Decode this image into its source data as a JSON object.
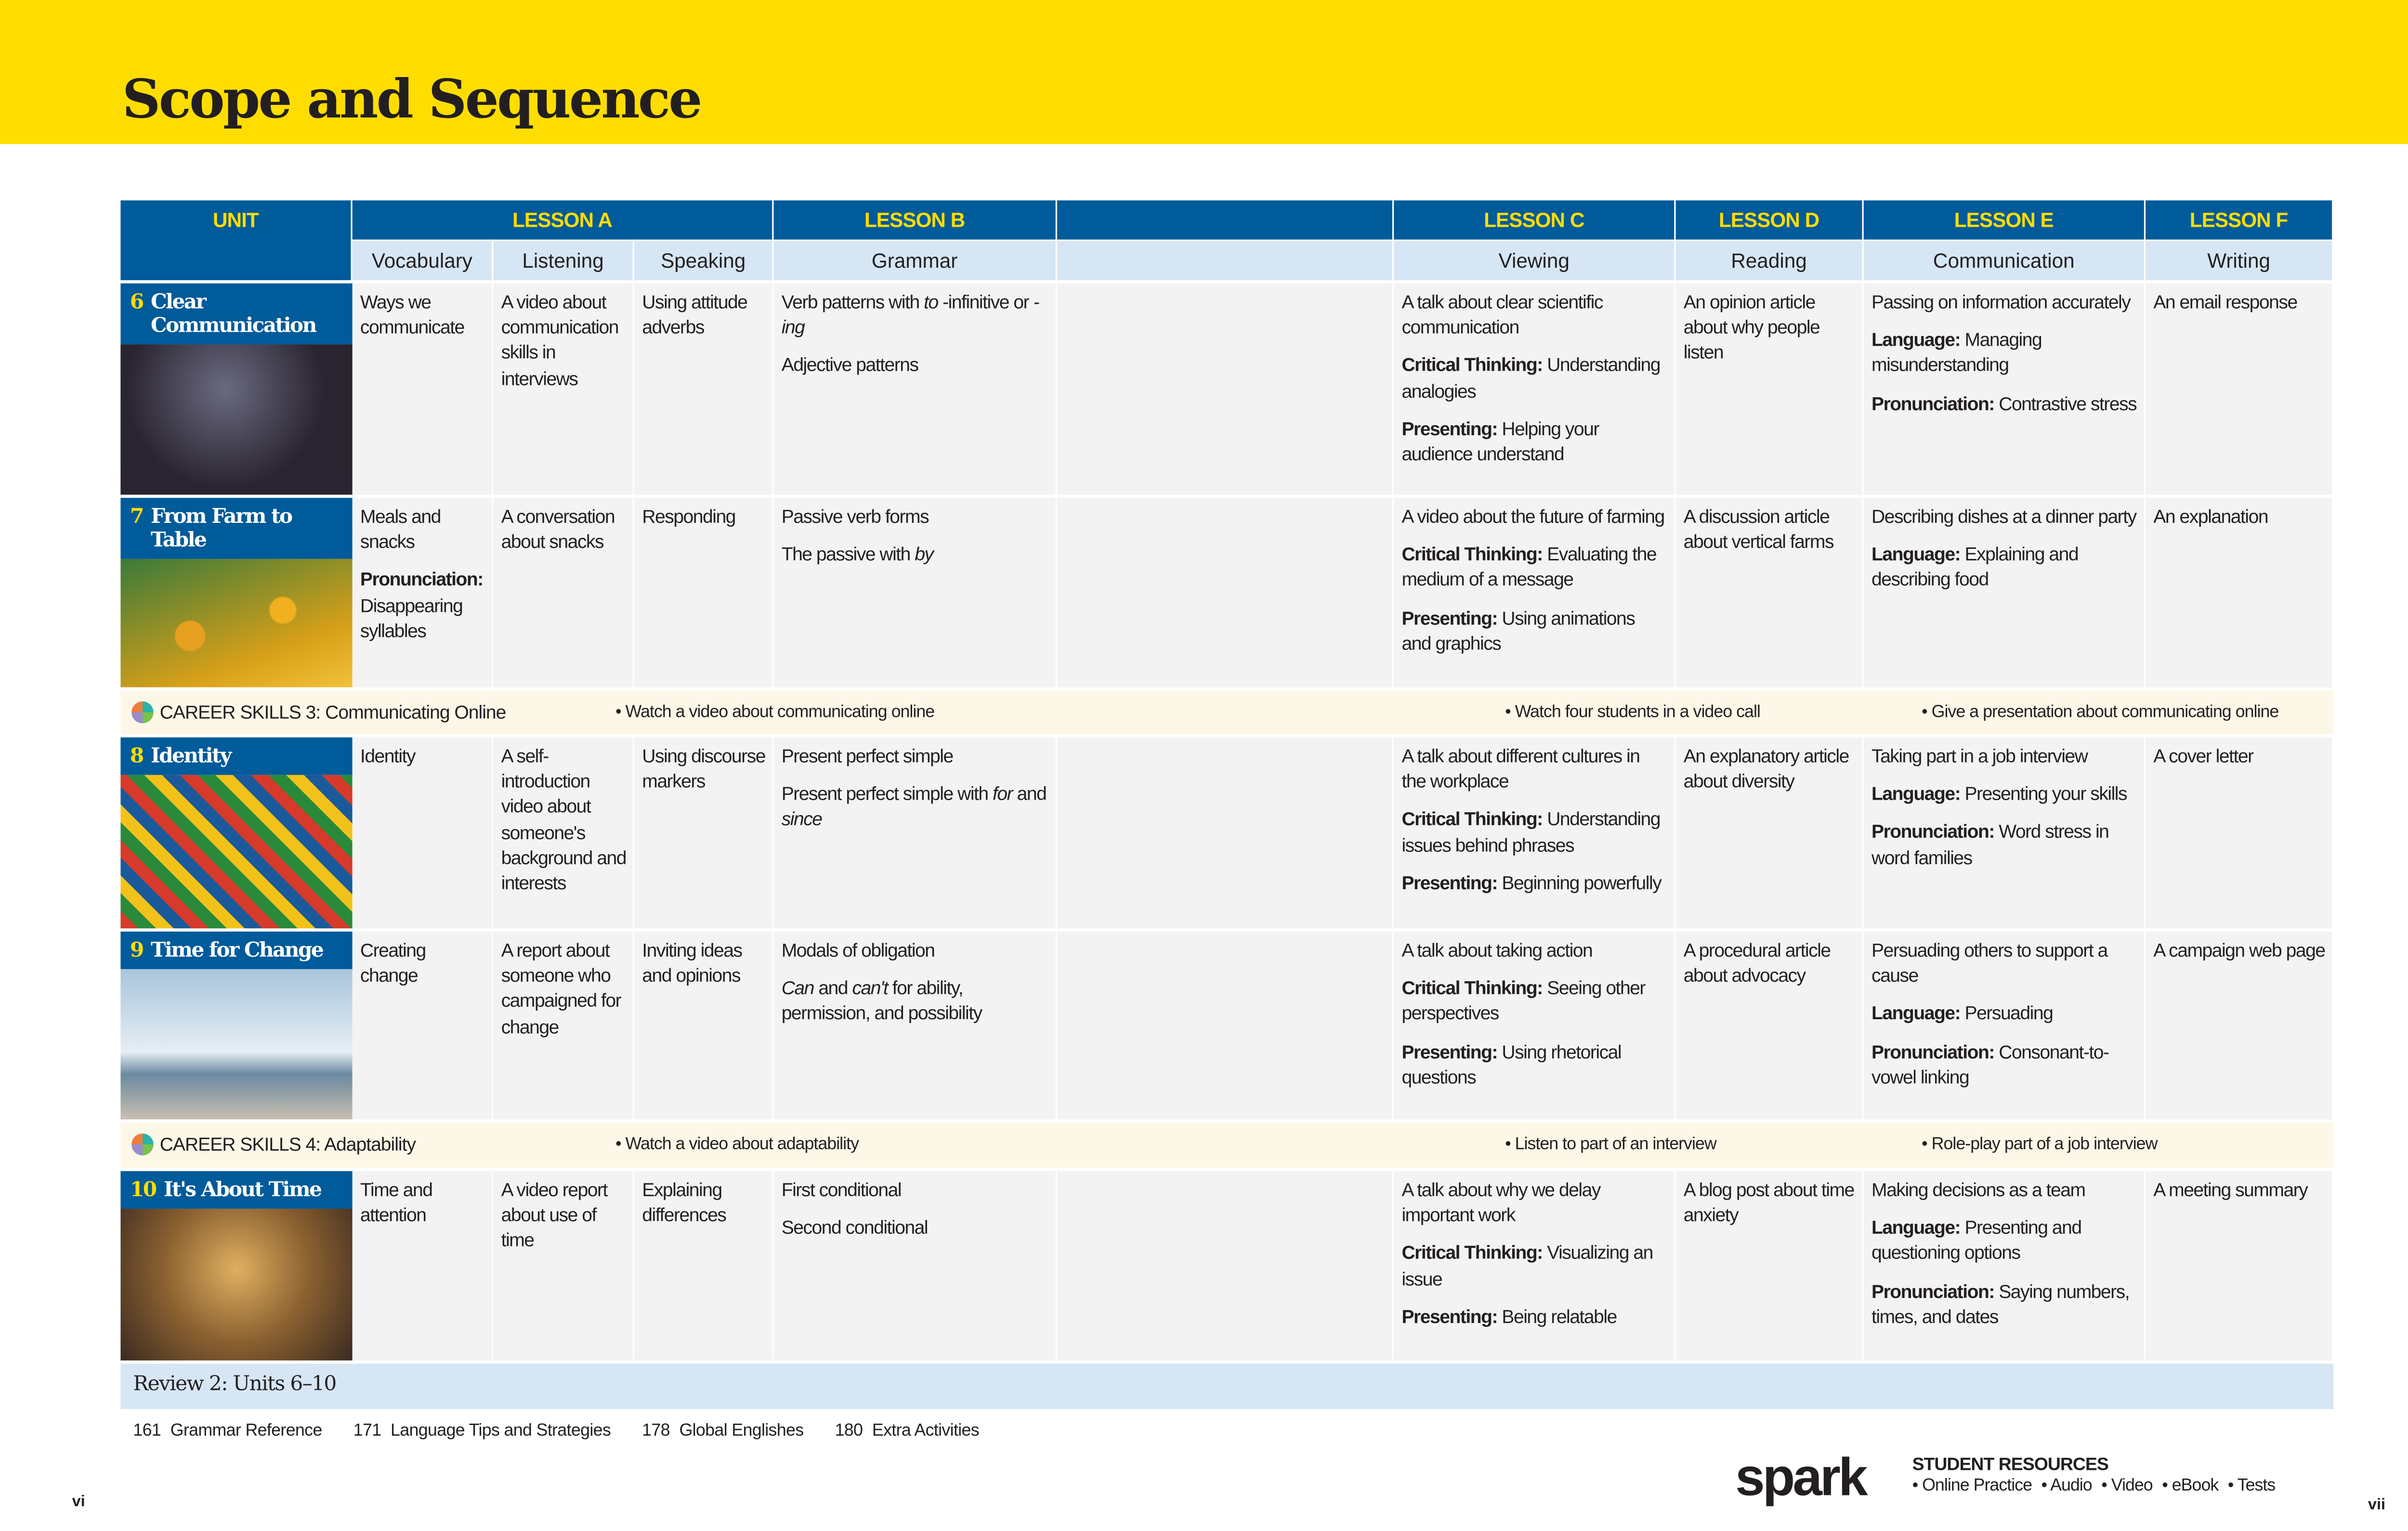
{
  "page": {
    "title": "Scope and Sequence",
    "band_color": "#FFDD00",
    "header_color": "#005B9A",
    "subheader_color": "#D6E6F5",
    "career_color": "#FDF7E7",
    "review_color": "#D6E6F5"
  },
  "header": {
    "unit": "UNIT",
    "lessons": [
      "LESSON A",
      "LESSON B",
      "",
      "LESSON C",
      "LESSON D",
      "LESSON E",
      "LESSON F"
    ],
    "skills": [
      "Vocabulary",
      "Listening",
      "Speaking",
      "Grammar",
      "",
      "Viewing",
      "Reading",
      "Communication",
      "Writing"
    ]
  },
  "units": [
    {
      "num": "6",
      "title": "Clear Communication",
      "cells": [
        [
          [
            [
              "",
              "Ways we communicate"
            ]
          ]
        ],
        [
          [
            [
              "",
              "A video about communication skills in interviews"
            ]
          ]
        ],
        [
          [
            [
              "",
              "Using attitude adverbs"
            ]
          ]
        ],
        [
          [
            [
              "",
              "Verb patterns with "
            ],
            [
              "i",
              "to"
            ],
            [
              "",
              "-infinitive or "
            ],
            [
              "i",
              "-ing"
            ]
          ],
          [
            [
              "",
              "Adjective patterns"
            ]
          ]
        ],
        [],
        [
          [
            [
              "",
              "A talk about clear scientific communication"
            ]
          ],
          [
            [
              "b",
              "Critical Thinking: "
            ],
            [
              "",
              "Understanding analogies"
            ]
          ],
          [
            [
              "b",
              "Presenting: "
            ],
            [
              "",
              "Helping your audience understand"
            ]
          ]
        ],
        [
          [
            [
              "",
              "An opinion article about why people listen"
            ]
          ]
        ],
        [
          [
            [
              "",
              "Passing on information accurately"
            ]
          ],
          [
            [
              "b",
              "Language: "
            ],
            [
              "",
              "Managing misunderstanding"
            ]
          ],
          [
            [
              "b",
              "Pronunciation: "
            ],
            [
              "",
              "Contrastive stress"
            ]
          ]
        ],
        [
          [
            [
              "",
              "An email response"
            ]
          ]
        ]
      ]
    },
    {
      "num": "7",
      "title": "From Farm to Table",
      "cells": [
        [
          [
            [
              "",
              "Meals and snacks"
            ]
          ],
          [
            [
              "b",
              "Pronunciation: "
            ],
            [
              "",
              "Disappearing syllables"
            ]
          ]
        ],
        [
          [
            [
              "",
              "A conversation about snacks"
            ]
          ]
        ],
        [
          [
            [
              "",
              "Responding"
            ]
          ]
        ],
        [
          [
            [
              "",
              "Passive verb forms"
            ]
          ],
          [
            [
              "",
              "The passive with "
            ],
            [
              "i",
              "by"
            ]
          ]
        ],
        [],
        [
          [
            [
              "",
              "A video about the future of farming"
            ]
          ],
          [
            [
              "b",
              "Critical Thinking: "
            ],
            [
              "",
              "Evaluating the medium of a message"
            ]
          ],
          [
            [
              "b",
              "Presenting: "
            ],
            [
              "",
              "Using animations and graphics"
            ]
          ]
        ],
        [
          [
            [
              "",
              "A discussion article about vertical farms"
            ]
          ]
        ],
        [
          [
            [
              "",
              "Describing dishes at a dinner party"
            ]
          ],
          [
            [
              "b",
              "Language: "
            ],
            [
              "",
              "Explaining and describing food"
            ]
          ]
        ],
        [
          [
            [
              "",
              "An explanation"
            ]
          ]
        ]
      ]
    },
    {
      "num": "8",
      "title": "Identity",
      "cells": [
        [
          [
            [
              "",
              "Identity"
            ]
          ]
        ],
        [
          [
            [
              "",
              "A self-introduction video about someone's background and interests"
            ]
          ]
        ],
        [
          [
            [
              "",
              "Using discourse markers"
            ]
          ]
        ],
        [
          [
            [
              "",
              "Present perfect simple"
            ]
          ],
          [
            [
              "",
              "Present perfect simple with "
            ],
            [
              "i",
              "for"
            ],
            [
              "",
              "and "
            ],
            [
              "i",
              "since"
            ]
          ]
        ],
        [],
        [
          [
            [
              "",
              "A talk about different cultures in the workplace"
            ]
          ],
          [
            [
              "b",
              "Critical Thinking: "
            ],
            [
              "",
              "Understanding issues behind phrases"
            ]
          ],
          [
            [
              "b",
              "Presenting: "
            ],
            [
              "",
              "Beginning powerfully"
            ]
          ]
        ],
        [
          [
            [
              "",
              "An explanatory article about diversity"
            ]
          ]
        ],
        [
          [
            [
              "",
              "Taking part in a job interview"
            ]
          ],
          [
            [
              "b",
              "Language: "
            ],
            [
              "",
              "Presenting your skills"
            ]
          ],
          [
            [
              "b",
              "Pronunciation: "
            ],
            [
              "",
              "Word stress in word families"
            ]
          ]
        ],
        [
          [
            [
              "",
              "A cover letter"
            ]
          ]
        ]
      ]
    },
    {
      "num": "9",
      "title": "Time for Change",
      "cells": [
        [
          [
            [
              "",
              "Creating change"
            ]
          ]
        ],
        [
          [
            [
              "",
              "A report about someone who campaigned for change"
            ]
          ]
        ],
        [
          [
            [
              "",
              "Inviting ideas and opinions"
            ]
          ]
        ],
        [
          [
            [
              "",
              "Modals of obligation"
            ]
          ],
          [
            [
              "i",
              "Can"
            ],
            [
              "",
              "and "
            ],
            [
              "i",
              "can't"
            ],
            [
              "",
              "for ability, permission, and possibility"
            ]
          ]
        ],
        [],
        [
          [
            [
              "",
              "A talk about taking action"
            ]
          ],
          [
            [
              "b",
              "Critical Thinking: "
            ],
            [
              "",
              "Seeing other perspectives"
            ]
          ],
          [
            [
              "b",
              "Presenting: "
            ],
            [
              "",
              "Using rhetorical questions"
            ]
          ]
        ],
        [
          [
            [
              "",
              "A procedural article about advocacy"
            ]
          ]
        ],
        [
          [
            [
              "",
              "Persuading others to support a cause"
            ]
          ],
          [
            [
              "b",
              "Language: "
            ],
            [
              "",
              "Persuading"
            ]
          ],
          [
            [
              "b",
              "Pronunciation: "
            ],
            [
              "",
              "Consonant-to-vowel linking"
            ]
          ]
        ],
        [
          [
            [
              "",
              "A campaign web page"
            ]
          ]
        ]
      ]
    },
    {
      "num": "10",
      "title": "It's About Time",
      "cells": [
        [
          [
            [
              "",
              "Time and attention"
            ]
          ]
        ],
        [
          [
            [
              "",
              "A video report about use of time"
            ]
          ]
        ],
        [
          [
            [
              "",
              "Explaining differences"
            ]
          ]
        ],
        [
          [
            [
              "",
              "First conditional"
            ]
          ],
          [
            [
              "",
              "Second conditional"
            ]
          ]
        ],
        [],
        [
          [
            [
              "",
              "A talk about why we delay important work"
            ]
          ],
          [
            [
              "b",
              "Critical Thinking: "
            ],
            [
              "",
              "Visualizing an issue"
            ]
          ],
          [
            [
              "b",
              "Presenting: "
            ],
            [
              "",
              "Being relatable"
            ]
          ]
        ],
        [
          [
            [
              "",
              "A blog post about time anxiety"
            ]
          ]
        ],
        [
          [
            [
              "",
              "Making decisions as a team"
            ]
          ],
          [
            [
              "b",
              "Language: "
            ],
            [
              "",
              "Presenting and questioning options"
            ]
          ],
          [
            [
              "b",
              "Pronunciation: "
            ],
            [
              "",
              "Saying numbers, times, and dates"
            ]
          ]
        ],
        [
          [
            [
              "",
              "A meeting summary"
            ]
          ]
        ]
      ]
    }
  ],
  "career": [
    {
      "label": "CAREER SKILLS 3: Communicating Online",
      "bullets": [
        "• Watch a video about communicating online",
        "• Watch four students in a video call",
        "• Give a presentation about communicating online"
      ]
    },
    {
      "label": "CAREER SKILLS 4: Adaptability",
      "bullets": [
        "• Watch a video about adaptability",
        "• Listen to part of an interview",
        "• Role-play part of a job interview"
      ]
    }
  ],
  "review": "Review 2: Units 6–10",
  "footer": {
    "refs": [
      {
        "page": "161",
        "label": "Grammar Reference"
      },
      {
        "page": "171",
        "label": "Language Tips and Strategies"
      },
      {
        "page": "178",
        "label": "Global Englishes"
      },
      {
        "page": "180",
        "label": "Extra Activities"
      }
    ],
    "page_left": "vi",
    "page_right": "vii",
    "logo": "spark",
    "resources_title": "STUDENT RESOURCES",
    "resources": [
      "• Online Practice",
      "• Audio",
      "• Video",
      "• eBook",
      "• Tests"
    ]
  }
}
